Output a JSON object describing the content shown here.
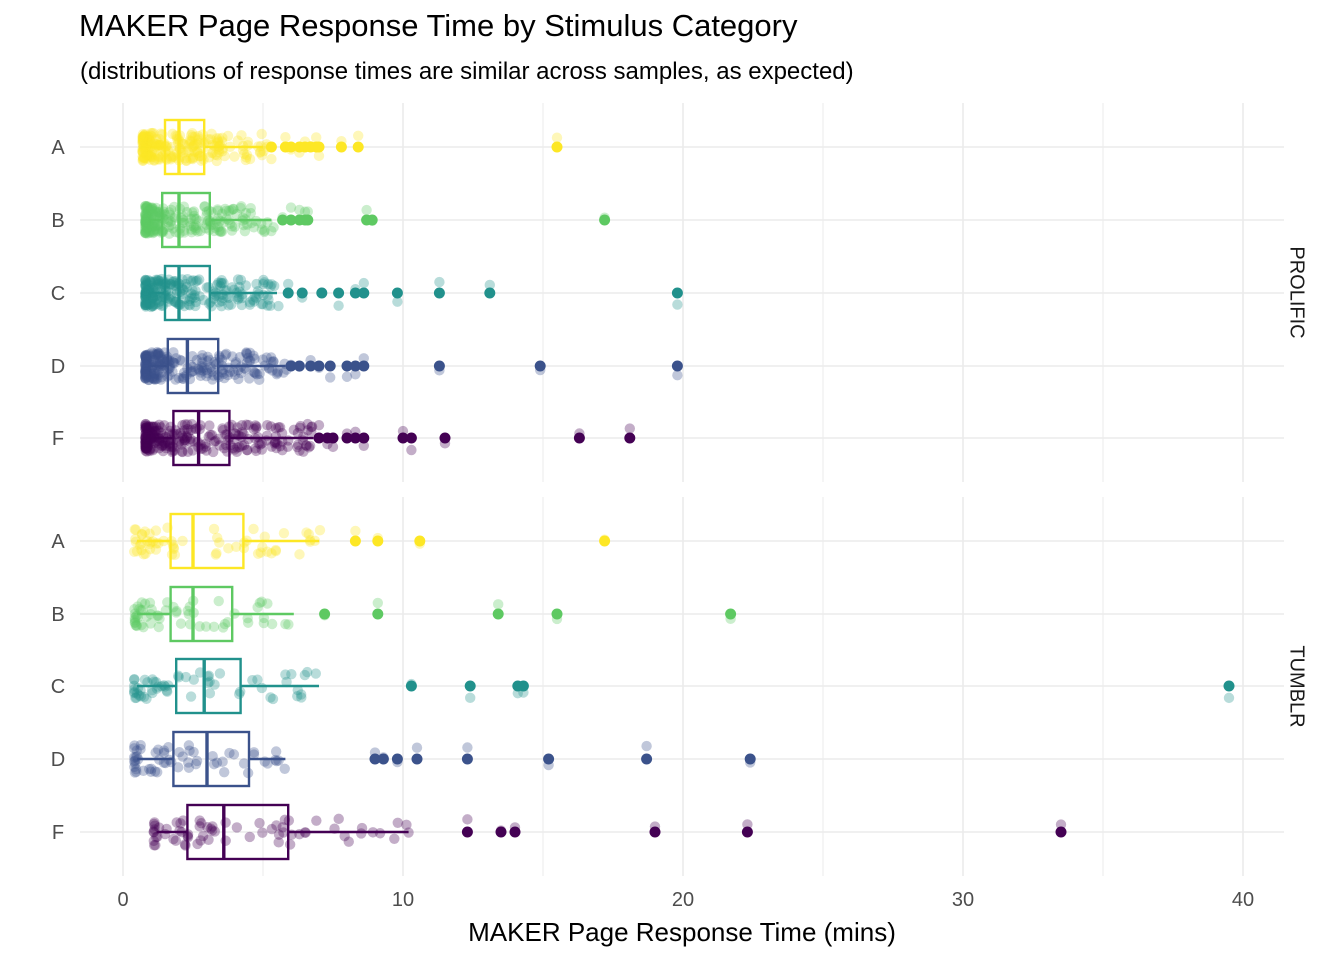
{
  "chart_data": {
    "type": "scatter",
    "title": "MAKER Page Response Time by Stimulus Category",
    "subtitle": "(distributions of response times are similar across samples, as expected)",
    "xlabel": "MAKER Page Response Time (mins)",
    "ylabel": "",
    "xlim": [
      -1.5,
      41.5
    ],
    "x_ticks": [
      0,
      10,
      20,
      30,
      40
    ],
    "grid": true,
    "chart_style": "jittered points with horizontal boxplots, faceted by sample",
    "categories": [
      "A",
      "B",
      "C",
      "D",
      "F"
    ],
    "category_colors": {
      "A": "#FDE725",
      "B": "#5EC962",
      "C": "#21918C",
      "D": "#3B528B",
      "F": "#440154"
    },
    "facets": [
      {
        "label": "PROLIFIC",
        "groups": [
          {
            "category": "A",
            "min": 0.8,
            "q1": 1.5,
            "median": 2.0,
            "q3": 2.9,
            "max": 5.0,
            "outliers": [
              5.3,
              5.8,
              6.0,
              6.3,
              6.5,
              6.7,
              6.9,
              7.0,
              7.8,
              8.4,
              15.5
            ],
            "n_jitter": 220,
            "jitter_range": [
              0.7,
              5.2
            ]
          },
          {
            "category": "B",
            "min": 0.9,
            "q1": 1.4,
            "median": 2.0,
            "q3": 3.1,
            "max": 5.3,
            "outliers": [
              5.7,
              6.0,
              6.3,
              6.5,
              6.6,
              8.7,
              8.9,
              17.2
            ],
            "n_jitter": 210,
            "jitter_range": [
              0.8,
              5.4
            ]
          },
          {
            "category": "C",
            "min": 0.9,
            "q1": 1.5,
            "median": 2.0,
            "q3": 3.1,
            "max": 5.5,
            "outliers": [
              5.9,
              6.4,
              7.1,
              7.7,
              8.3,
              8.6,
              9.8,
              11.3,
              13.1,
              19.8
            ],
            "n_jitter": 230,
            "jitter_range": [
              0.8,
              5.6
            ]
          },
          {
            "category": "D",
            "min": 0.9,
            "q1": 1.6,
            "median": 2.3,
            "q3": 3.4,
            "max": 5.8,
            "outliers": [
              6.0,
              6.3,
              6.7,
              7.0,
              7.4,
              8.0,
              8.3,
              8.6,
              11.3,
              14.9,
              19.8
            ],
            "n_jitter": 230,
            "jitter_range": [
              0.8,
              5.9
            ]
          },
          {
            "category": "F",
            "min": 0.8,
            "q1": 1.8,
            "median": 2.7,
            "q3": 3.8,
            "max": 6.8,
            "outliers": [
              7.0,
              7.3,
              7.5,
              8.0,
              8.3,
              8.6,
              10.0,
              10.3,
              11.5,
              16.3,
              18.1
            ],
            "n_jitter": 260,
            "jitter_range": [
              0.8,
              6.9
            ]
          }
        ]
      },
      {
        "label": "TUMBLR",
        "groups": [
          {
            "category": "A",
            "min": 0.5,
            "q1": 1.7,
            "median": 2.5,
            "q3": 4.3,
            "max": 7.0,
            "outliers": [
              8.3,
              9.1,
              10.6,
              17.2
            ],
            "n_jitter": 60,
            "jitter_range": [
              0.4,
              7.1
            ]
          },
          {
            "category": "B",
            "min": 0.5,
            "q1": 1.7,
            "median": 2.5,
            "q3": 3.9,
            "max": 6.1,
            "outliers": [
              7.2,
              9.1,
              13.4,
              15.5,
              21.7
            ],
            "n_jitter": 60,
            "jitter_range": [
              0.4,
              6.2
            ]
          },
          {
            "category": "C",
            "min": 0.5,
            "q1": 1.9,
            "median": 2.9,
            "q3": 4.2,
            "max": 7.0,
            "outliers": [
              10.3,
              12.4,
              14.1,
              14.3,
              39.5
            ],
            "n_jitter": 60,
            "jitter_range": [
              0.4,
              7.0
            ]
          },
          {
            "category": "D",
            "min": 0.5,
            "q1": 1.8,
            "median": 3.0,
            "q3": 4.5,
            "max": 5.8,
            "outliers": [
              9.0,
              9.3,
              9.8,
              10.5,
              12.3,
              15.2,
              18.7,
              22.4
            ],
            "n_jitter": 60,
            "jitter_range": [
              0.4,
              5.9
            ]
          },
          {
            "category": "F",
            "min": 1.2,
            "q1": 2.3,
            "median": 3.6,
            "q3": 5.9,
            "max": 10.2,
            "outliers": [
              12.3,
              13.5,
              14.0,
              19.0,
              22.3,
              33.5
            ],
            "n_jitter": 70,
            "jitter_range": [
              1.1,
              10.3
            ]
          }
        ]
      }
    ]
  }
}
